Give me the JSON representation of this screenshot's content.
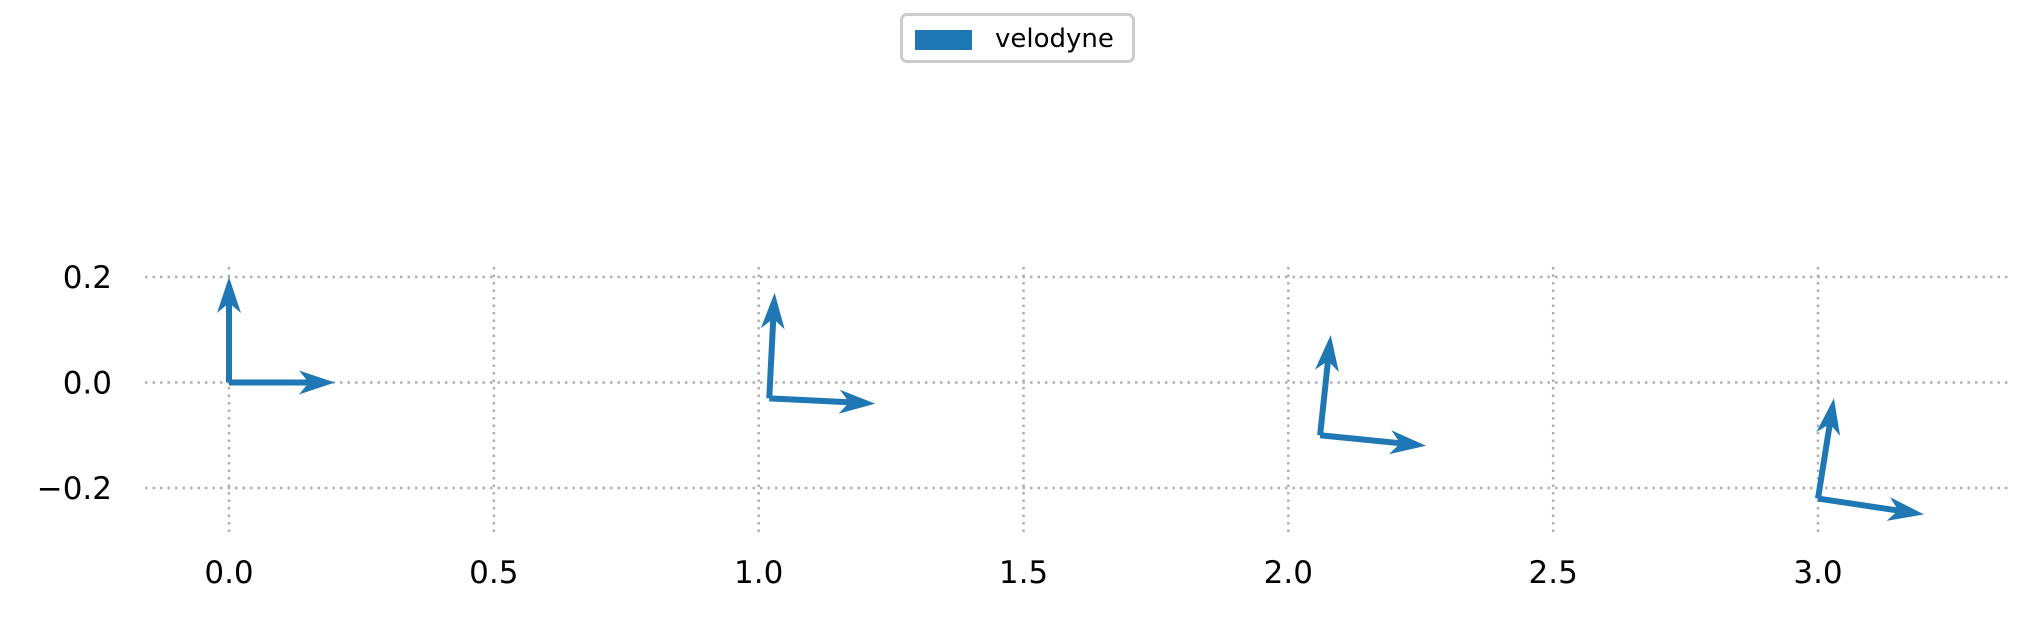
{
  "chart_data": {
    "type": "quiver",
    "xlim": [
      -0.15,
      3.38
    ],
    "ylim": [
      -0.3,
      0.2
    ],
    "xticks": [
      0.0,
      0.5,
      1.0,
      1.5,
      2.0,
      2.5,
      3.0
    ],
    "xtick_labels": [
      "0.0",
      "0.5",
      "1.0",
      "1.5",
      "2.0",
      "2.5",
      "3.0"
    ],
    "yticks": [
      0.2,
      0.0,
      -0.2
    ],
    "ytick_labels": [
      "0.2",
      "0.0",
      "−0.2"
    ],
    "grid": true,
    "grid_style": "dotted",
    "legend": {
      "position": "top-center",
      "entries": [
        {
          "label": "velodyne",
          "color": "#1f77b4"
        }
      ]
    },
    "series": [
      {
        "name": "velodyne",
        "color": "#1f77b4",
        "poses": [
          {
            "x": 0.0,
            "y": 0.0,
            "x_axis_end": [
              0.2,
              0.0
            ],
            "y_axis_end": [
              0.0,
              0.2
            ]
          },
          {
            "x": 1.02,
            "y": -0.03,
            "x_axis_end": [
              1.22,
              -0.04
            ],
            "y_axis_end": [
              1.03,
              0.17
            ]
          },
          {
            "x": 2.06,
            "y": -0.1,
            "x_axis_end": [
              2.26,
              -0.12
            ],
            "y_axis_end": [
              2.08,
              0.09
            ]
          },
          {
            "x": 3.0,
            "y": -0.22,
            "x_axis_end": [
              3.2,
              -0.25
            ],
            "y_axis_end": [
              3.03,
              -0.03
            ]
          }
        ]
      }
    ]
  }
}
